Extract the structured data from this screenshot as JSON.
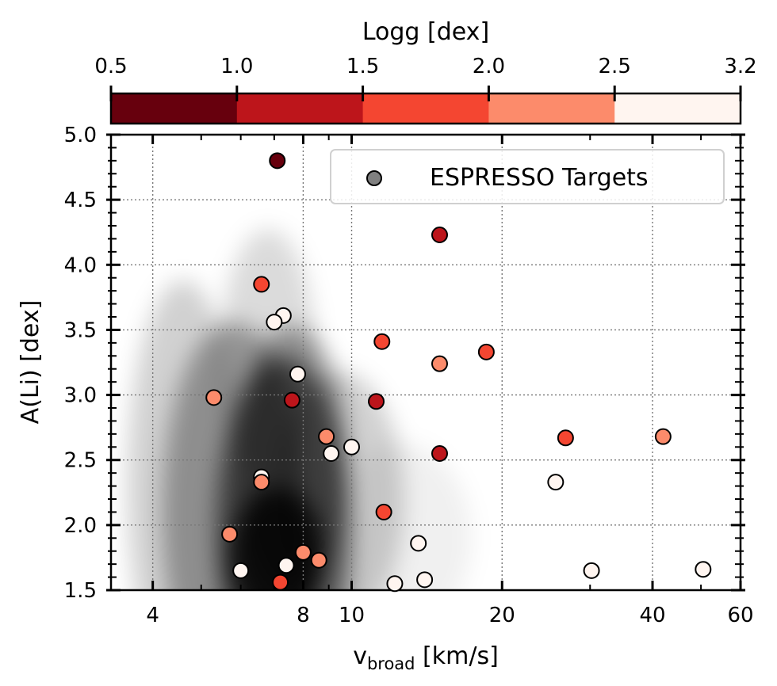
{
  "chart_data": {
    "type": "scatter",
    "title": "",
    "xlabel": "v",
    "xlabel_sub": "broad",
    "xlabel_unit": " [km/s]",
    "ylabel": "A(Li) [dex]",
    "x_scale": "log",
    "xlim": [
      3.3,
      60
    ],
    "ylim": [
      1.5,
      5.0
    ],
    "grid": true,
    "x_ticks": [
      4,
      8,
      10,
      20,
      40,
      60
    ],
    "x_tick_labels": [
      "4",
      "8",
      "10",
      "20",
      "40",
      "60"
    ],
    "y_ticks": [
      1.5,
      2.0,
      2.5,
      3.0,
      3.5,
      4.0,
      4.5,
      5.0
    ],
    "y_tick_labels": [
      "1.5",
      "2.0",
      "2.5",
      "3.0",
      "3.5",
      "4.0",
      "4.5",
      "5.0"
    ],
    "colorbar": {
      "label": "Logg [dex]",
      "position": "top",
      "boundaries": [
        0.5,
        1.0,
        1.5,
        2.0,
        2.5,
        3.2
      ],
      "tick_labels": [
        "0.5",
        "1.0",
        "1.5",
        "2.0",
        "2.5",
        "3.2"
      ],
      "colors": [
        "#67000d",
        "#bd151b",
        "#f44631",
        "#fc8b6b",
        "#fff5f0"
      ]
    },
    "background": {
      "type": "density-heatmap",
      "colormap": "greys",
      "peak_x": 7.2,
      "peak_y": 1.8
    },
    "legend": {
      "entries": [
        "ESPRESSO Targets"
      ],
      "placement": "top-right",
      "marker_color": "#808080"
    },
    "series": [
      {
        "name": "ESPRESSO Targets",
        "points": [
          {
            "x": 7.1,
            "y": 4.8,
            "logg": 0.7
          },
          {
            "x": 15.0,
            "y": 4.23,
            "logg": 1.2
          },
          {
            "x": 6.6,
            "y": 3.85,
            "logg": 1.7
          },
          {
            "x": 7.3,
            "y": 3.61,
            "logg": 2.9
          },
          {
            "x": 7.0,
            "y": 3.56,
            "logg": 2.9
          },
          {
            "x": 11.5,
            "y": 3.41,
            "logg": 1.7
          },
          {
            "x": 18.6,
            "y": 3.33,
            "logg": 1.7
          },
          {
            "x": 15.0,
            "y": 3.24,
            "logg": 2.2
          },
          {
            "x": 7.8,
            "y": 3.16,
            "logg": 2.9
          },
          {
            "x": 5.3,
            "y": 2.98,
            "logg": 2.2
          },
          {
            "x": 7.6,
            "y": 2.96,
            "logg": 1.2
          },
          {
            "x": 11.2,
            "y": 2.95,
            "logg": 1.2
          },
          {
            "x": 8.9,
            "y": 2.68,
            "logg": 2.2
          },
          {
            "x": 26.8,
            "y": 2.67,
            "logg": 1.7
          },
          {
            "x": 42.0,
            "y": 2.68,
            "logg": 2.2
          },
          {
            "x": 10.0,
            "y": 2.6,
            "logg": 2.9
          },
          {
            "x": 9.1,
            "y": 2.55,
            "logg": 2.9
          },
          {
            "x": 15.0,
            "y": 2.55,
            "logg": 1.2
          },
          {
            "x": 6.6,
            "y": 2.37,
            "logg": 2.9
          },
          {
            "x": 6.6,
            "y": 2.33,
            "logg": 2.2
          },
          {
            "x": 25.6,
            "y": 2.33,
            "logg": 2.9
          },
          {
            "x": 11.6,
            "y": 2.1,
            "logg": 1.7
          },
          {
            "x": 5.7,
            "y": 1.93,
            "logg": 2.2
          },
          {
            "x": 13.6,
            "y": 1.86,
            "logg": 2.9
          },
          {
            "x": 8.0,
            "y": 1.79,
            "logg": 2.2
          },
          {
            "x": 8.6,
            "y": 1.73,
            "logg": 2.2
          },
          {
            "x": 7.4,
            "y": 1.69,
            "logg": 2.9
          },
          {
            "x": 6.0,
            "y": 1.65,
            "logg": 2.9
          },
          {
            "x": 30.2,
            "y": 1.65,
            "logg": 2.9
          },
          {
            "x": 50.5,
            "y": 1.66,
            "logg": 2.9
          },
          {
            "x": 14.0,
            "y": 1.58,
            "logg": 2.9
          },
          {
            "x": 12.2,
            "y": 1.55,
            "logg": 2.9
          },
          {
            "x": 7.2,
            "y": 1.56,
            "logg": 1.7
          }
        ]
      }
    ]
  }
}
